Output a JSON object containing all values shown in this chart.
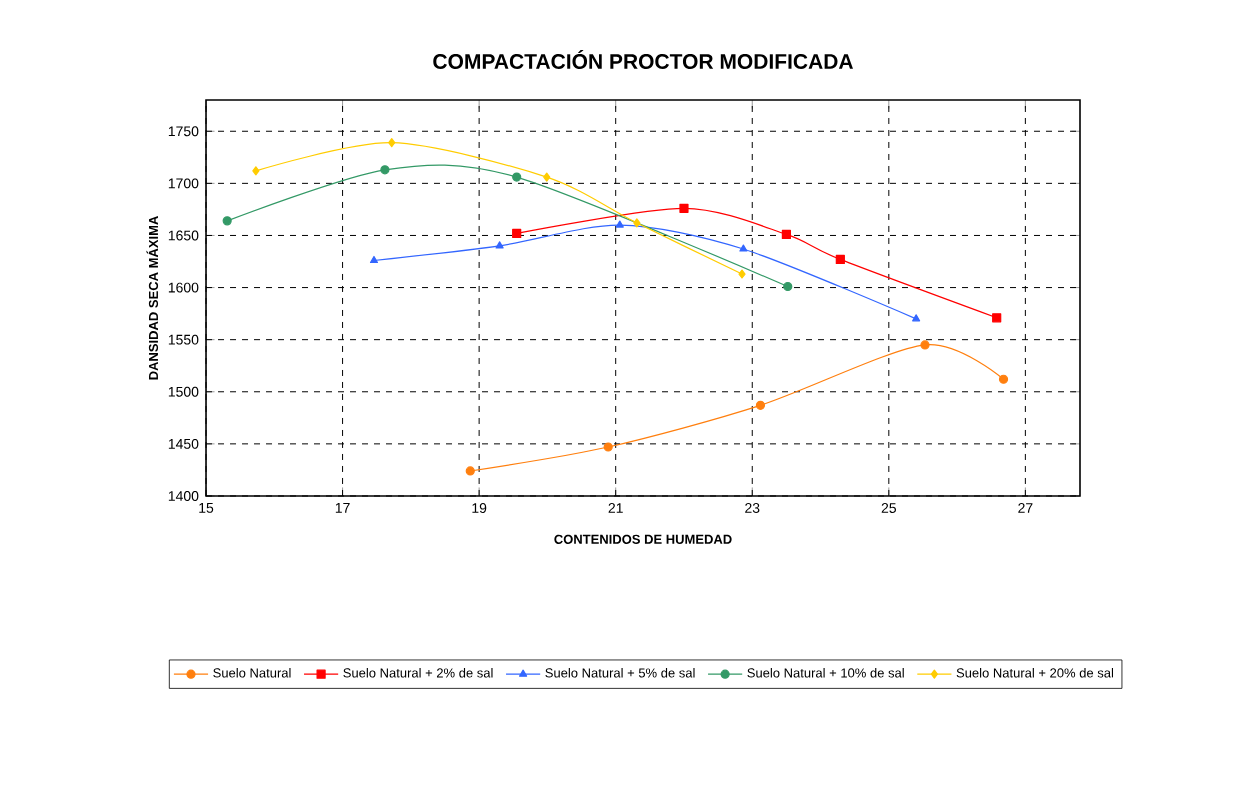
{
  "chart_data": {
    "type": "line",
    "title": "COMPACTACIÓN PROCTOR MODIFICADA",
    "xlabel": "CONTENIDOS DE HUMEDAD",
    "ylabel": "DANSIDAD SECA MÁXIMA",
    "xlim": [
      15,
      27.8
    ],
    "ylim": [
      1400,
      1780
    ],
    "xticks": [
      15,
      17,
      19,
      21,
      23,
      25,
      27
    ],
    "yticks": [
      1400,
      1450,
      1500,
      1550,
      1600,
      1650,
      1700,
      1750
    ],
    "grid": true,
    "legend": "bottom",
    "line_style": "solid",
    "series": [
      {
        "name": "Suelo Natural",
        "color": "#ff7f0e",
        "marker": "circle",
        "x": [
          18.87,
          20.89,
          23.12,
          25.53,
          26.68
        ],
        "values": [
          1424,
          1447,
          1487,
          1545,
          1512
        ]
      },
      {
        "name": "Suelo Natural + 2% de sal",
        "color": "#ff0000",
        "marker": "square",
        "x": [
          19.55,
          22.0,
          23.5,
          24.29,
          26.58
        ],
        "values": [
          1652,
          1676,
          1651,
          1627,
          1571
        ]
      },
      {
        "name": "Suelo Natural + 5% de sal",
        "color": "#3366ff",
        "marker": "triangle",
        "x": [
          17.46,
          19.3,
          21.06,
          22.87,
          25.4
        ],
        "values": [
          1626,
          1640,
          1660,
          1637,
          1570
        ]
      },
      {
        "name": "Suelo Natural + 10% de sal",
        "color": "#339966",
        "marker": "circle",
        "x": [
          15.31,
          17.62,
          19.55,
          23.52
        ],
        "values": [
          1664,
          1713,
          1706,
          1601
        ]
      },
      {
        "name": "Suelo Natural + 20% de sal",
        "color": "#ffcc00",
        "marker": "diamond",
        "x": [
          15.73,
          17.72,
          19.99,
          21.31,
          22.85
        ],
        "values": [
          1712,
          1739,
          1706,
          1662,
          1613
        ]
      }
    ]
  }
}
